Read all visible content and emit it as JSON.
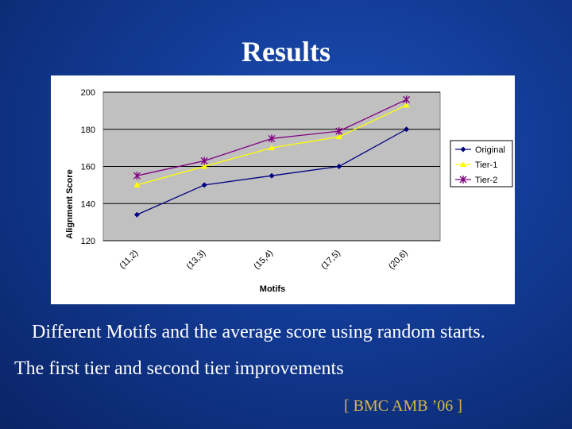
{
  "slide": {
    "title": "Results",
    "caption_line1": "Different Motifs and the average score using random starts.",
    "caption_line2": "The first tier and second tier improvements",
    "citation": "[ BMC AMB ’06 ]"
  },
  "colors": {
    "background": "#123a94",
    "plot_area": "#c0c0c0",
    "original": "#000080",
    "tier1": "#ffff00",
    "tier2": "#800080"
  },
  "chart_data": {
    "type": "line",
    "title": "",
    "xlabel": "Motifs",
    "ylabel": "Alignment Score",
    "categories": [
      "(11,2)",
      "(13,3)",
      "(15,4)",
      "(17,5)",
      "(20,6)"
    ],
    "ylim": [
      120,
      200
    ],
    "yticks": [
      "120",
      "140",
      "160",
      "180",
      "200"
    ],
    "grid": true,
    "legend_position": "right",
    "series": [
      {
        "name": "Original",
        "values": [
          134,
          150,
          155,
          160,
          180
        ],
        "color": "#000080",
        "marker": "diamond"
      },
      {
        "name": "Tier-1",
        "values": [
          150,
          160,
          170,
          176,
          193
        ],
        "color": "#ffff00",
        "marker": "triangle"
      },
      {
        "name": "Tier-2",
        "values": [
          155,
          163,
          175,
          179,
          196
        ],
        "color": "#800080",
        "marker": "star"
      }
    ]
  }
}
